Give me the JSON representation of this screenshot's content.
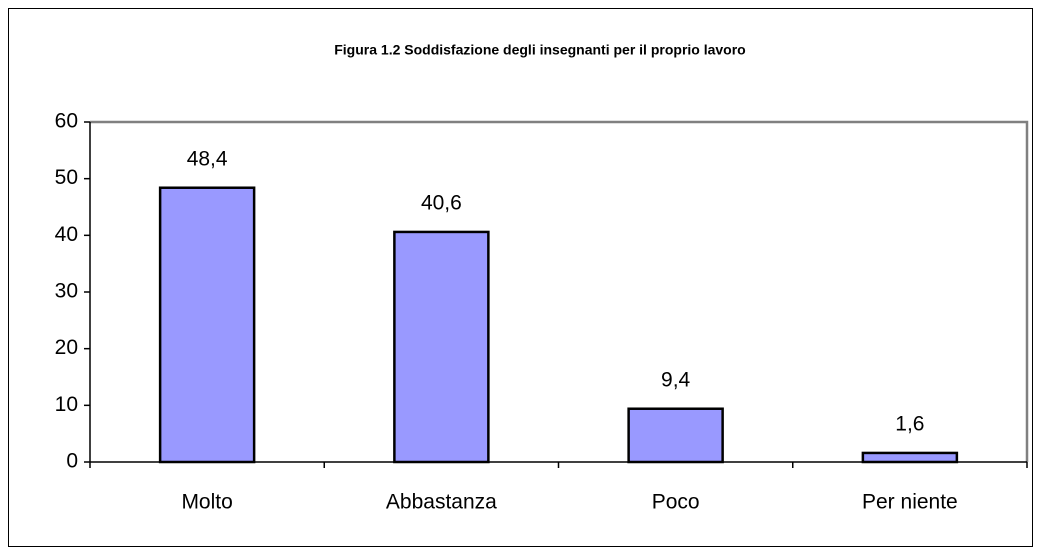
{
  "chart_data": {
    "type": "bar",
    "title": "Figura 1.2 Soddisfazione degli insegnanti per il proprio lavoro",
    "categories": [
      "Molto",
      "Abbastanza",
      "Poco",
      "Per niente"
    ],
    "values": [
      48.4,
      40.6,
      9.4,
      1.6
    ],
    "value_labels": [
      "48,4",
      "40,6",
      "9,4",
      "1,6"
    ],
    "color": "#9999ff",
    "ylim": [
      0,
      60
    ],
    "yticks": [
      0,
      10,
      20,
      30,
      40,
      50,
      60
    ],
    "grid": false
  }
}
